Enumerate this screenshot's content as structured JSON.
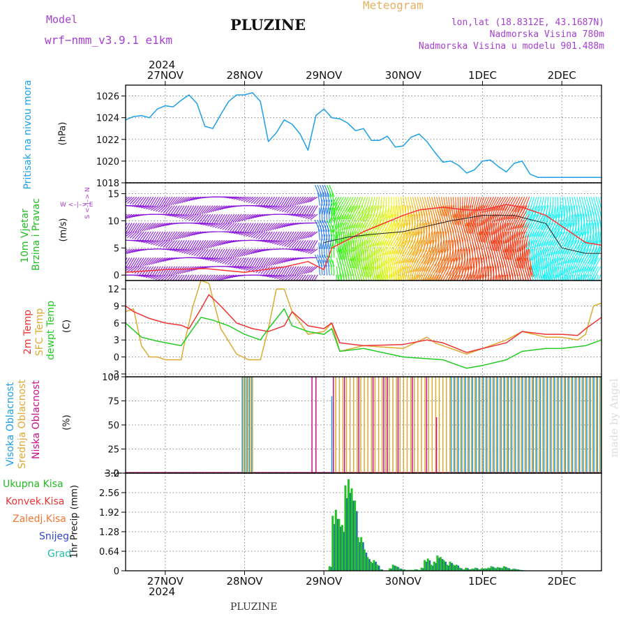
{
  "header": {
    "model_label": "Model",
    "model_name": "wrf−nmm_v3.9.1  e1km",
    "station": "PLUZINE",
    "meteogram_label": "Meteogram",
    "lonlat": "lon,lat (18.8312E, 43.1687N)",
    "altitude": "Nadmorska Visina 780m",
    "model_altitude": "Nadmorska Visina u modelu 901.488m",
    "year_top": "2024",
    "year_bottom": "2024",
    "footer_station": "PLUZINE",
    "credit": "made by Angel"
  },
  "colors": {
    "pressure": "#1ea0e6",
    "t2m": "#ee3333",
    "sfc": "#ddaa33",
    "dewpt": "#22cc22",
    "high": "#1e9de6",
    "mid": "#dcaa33",
    "low": "#cc1188",
    "total": "#22c222",
    "conv": "#ee3333",
    "snow": "#3355cc",
    "accent": "#a540d0"
  },
  "panel_labels": {
    "pressure": {
      "name": "Pritisak na nivou mora",
      "unit": "(hPa)"
    },
    "wind": {
      "name1": "10m Vjetar",
      "name2": "Brzina i Pravac",
      "unit": "(m/s)",
      "compass": "W <–|–> E",
      "compass_v": "S <–|–> N"
    },
    "temp": {
      "l1": "2m Temp",
      "l2": "SFC Temp",
      "l3": "dewpt Temp",
      "unit": "(C)"
    },
    "cloud": {
      "l1": "Visoka Oblacnost",
      "l2": "Srednja Oblacnost",
      "l3": "Niska Oblacnost",
      "unit": "(%)"
    },
    "precip": {
      "l1": "Ukupna Kisa",
      "l2": "Konvek.Kisa",
      "l3": "Zaledj.Kisa",
      "l4": "Snijeg",
      "l5": "Grad",
      "unit": "1hr Precip (mm)"
    }
  },
  "chart_data": [
    {
      "type": "line",
      "id": "pressure",
      "x_ticks": [
        "27NOV",
        "28NOV",
        "29NOV",
        "30NOV",
        "1DEC",
        "2DEC"
      ],
      "x_range_days": [
        -0.5,
        5.5
      ],
      "ylim": [
        1018,
        1027
      ],
      "y_ticks": [
        "1018",
        "1020",
        "1022",
        "1024",
        "1026"
      ],
      "series": [
        {
          "x": [
            -0.5,
            -0.4,
            -0.3,
            -0.2,
            -0.1,
            0,
            0.1,
            0.2,
            0.3,
            0.4,
            0.5,
            0.6,
            0.7,
            0.8,
            0.9,
            1.0,
            1.1,
            1.2,
            1.3,
            1.4,
            1.5,
            1.6,
            1.7,
            1.8,
            1.9,
            2.0,
            2.1,
            2.2,
            2.3,
            2.4,
            2.5,
            2.6,
            2.7,
            2.8,
            2.9,
            3.0,
            3.1,
            3.2,
            3.3,
            3.4,
            3.5,
            3.6,
            3.7,
            3.8,
            3.9,
            4.0,
            4.1,
            4.2,
            4.3,
            4.4,
            4.5,
            4.6,
            4.7,
            4.8,
            4.9,
            5.0,
            5.1,
            5.2,
            5.3,
            5.4,
            5.5
          ],
          "values": [
            1023.8,
            1024.1,
            1024.2,
            1024.0,
            1024.8,
            1025.1,
            1025.0,
            1025.6,
            1026.1,
            1025.3,
            1023.2,
            1023.0,
            1024.3,
            1025.5,
            1026.1,
            1026.1,
            1026.3,
            1025.5,
            1021.8,
            1022.6,
            1023.8,
            1023.4,
            1022.5,
            1021.0,
            1024.2,
            1024.8,
            1024.0,
            1023.9,
            1023.5,
            1022.8,
            1023.0,
            1021.9,
            1021.9,
            1022.3,
            1021.3,
            1021.4,
            1022.2,
            1022.5,
            1021.8,
            1020.8,
            1019.9,
            1020.0,
            1019.6,
            1018.9,
            1019.2,
            1020.0,
            1020.1,
            1019.5,
            1019.0,
            1019.8,
            1020.0,
            1018.8,
            1018.5,
            1018.5,
            1018.5,
            1018.5,
            1018.5,
            1018.5,
            1018.5,
            1018.5,
            1018.5
          ]
        }
      ]
    },
    {
      "type": "line",
      "id": "wind",
      "ylim": [
        -1,
        17
      ],
      "y_ticks": [
        "0",
        "5",
        "10",
        "15"
      ],
      "series": [
        {
          "name": "speed",
          "x": [
            -0.5,
            0,
            0.5,
            1.0,
            1.5,
            1.8,
            2.0,
            2.1,
            2.5,
            3.0,
            3.2,
            3.5,
            3.8,
            4.0,
            4.3,
            4.5,
            4.8,
            5.0,
            5.3,
            5.5
          ],
          "values": [
            0.5,
            1.0,
            1.2,
            0.5,
            1.5,
            2.5,
            1.0,
            5.0,
            8.0,
            11.0,
            12.0,
            12.5,
            12.0,
            12.0,
            13.0,
            12.5,
            11.0,
            9.0,
            6.0,
            5.5
          ]
        },
        {
          "name": "speed_model",
          "x": [
            2.0,
            2.3,
            2.6,
            3.0,
            3.3,
            3.6,
            4.0,
            4.4,
            4.8,
            5.0,
            5.3,
            5.5
          ],
          "values": [
            6.0,
            7.0,
            7.5,
            8.0,
            9.0,
            10.0,
            11.0,
            11.0,
            9.5,
            5.0,
            4.0,
            4.0
          ]
        }
      ]
    },
    {
      "type": "line",
      "id": "temperature",
      "ylim": [
        -3.5,
        13.5
      ],
      "y_ticks": [
        "-3",
        "0",
        "3",
        "6",
        "9",
        "12"
      ],
      "series": [
        {
          "name": "2m Temp",
          "x": [
            -0.5,
            -0.4,
            -0.2,
            0.0,
            0.2,
            0.3,
            0.45,
            0.55,
            0.7,
            0.9,
            1.1,
            1.3,
            1.5,
            1.6,
            1.8,
            2.0,
            2.1,
            2.2,
            2.5,
            3.0,
            3.3,
            3.5,
            3.8,
            4.0,
            4.3,
            4.5,
            4.8,
            5.0,
            5.2,
            5.3,
            5.5
          ],
          "values": [
            9.0,
            8.0,
            6.8,
            6.0,
            5.6,
            5.0,
            8.5,
            11.0,
            9.0,
            6.0,
            5.0,
            4.5,
            5.5,
            8.0,
            5.5,
            5.0,
            6.0,
            2.5,
            2.0,
            2.2,
            3.0,
            2.5,
            0.8,
            1.5,
            2.5,
            4.5,
            4.0,
            4.0,
            3.8,
            5.0,
            7.0
          ]
        },
        {
          "name": "SFC Temp",
          "x": [
            -0.5,
            -0.4,
            -0.3,
            -0.2,
            -0.1,
            0.0,
            0.2,
            0.25,
            0.35,
            0.45,
            0.55,
            0.7,
            0.9,
            1.05,
            1.2,
            1.3,
            1.4,
            1.5,
            1.6,
            1.8,
            2.0,
            2.1,
            2.2,
            2.5,
            3.0,
            3.3,
            3.4,
            3.5,
            3.8,
            4.0,
            4.3,
            4.5,
            4.8,
            5.0,
            5.2,
            5.3,
            5.4,
            5.5
          ],
          "values": [
            8.0,
            8.5,
            2.0,
            0.0,
            0.0,
            -0.5,
            -0.5,
            3.0,
            9.0,
            13.5,
            13.0,
            5.0,
            0.5,
            -0.5,
            -0.5,
            5.0,
            12.0,
            12.0,
            8.0,
            4.0,
            4.5,
            6.0,
            1.0,
            2.0,
            1.5,
            3.5,
            2.5,
            2.0,
            0.5,
            1.5,
            3.0,
            4.5,
            3.5,
            3.5,
            3.0,
            4.0,
            9.0,
            9.5
          ]
        },
        {
          "name": "dewpt Temp",
          "x": [
            -0.5,
            -0.3,
            -0.1,
            0.2,
            0.3,
            0.45,
            0.6,
            0.8,
            1.0,
            1.2,
            1.3,
            1.5,
            1.6,
            1.8,
            2.0,
            2.1,
            2.2,
            2.5,
            3.0,
            3.5,
            3.8,
            4.0,
            4.3,
            4.5,
            4.8,
            5.0,
            5.3,
            5.5
          ],
          "values": [
            6.0,
            3.5,
            2.8,
            2.0,
            4.0,
            7.0,
            6.5,
            5.5,
            4.0,
            3.0,
            5.0,
            8.5,
            5.5,
            4.5,
            4.0,
            5.0,
            1.0,
            1.5,
            0.0,
            -0.5,
            -2.0,
            -1.5,
            -0.5,
            1.0,
            1.5,
            1.5,
            2.0,
            3.0
          ]
        }
      ]
    },
    {
      "type": "bar",
      "id": "cloud",
      "ylim": [
        0,
        100
      ],
      "y_ticks": [
        "0",
        "25",
        "50",
        "75",
        "100"
      ]
    },
    {
      "type": "bar",
      "id": "precip",
      "ylim": [
        0,
        3.2
      ],
      "y_ticks": [
        "0",
        "0.64",
        "1.28",
        "1.92",
        "2.56",
        "3.2"
      ],
      "series": [
        {
          "name": "Ukupna Kisa",
          "x": [
            2.08,
            2.12,
            2.16,
            2.2,
            2.24,
            2.28,
            2.32,
            2.36,
            2.4,
            2.44,
            2.48,
            2.52,
            2.56,
            2.6,
            2.64,
            2.68,
            2.72,
            2.76,
            2.8,
            2.84,
            2.88,
            2.92,
            2.96,
            3.0,
            3.04,
            3.08,
            3.12,
            3.16,
            3.2,
            3.24,
            3.28,
            3.32,
            3.36,
            3.4,
            3.44,
            3.48,
            3.52,
            3.56,
            3.6,
            3.64,
            3.68,
            3.72,
            3.76,
            3.8,
            3.84,
            3.88,
            3.92,
            3.96,
            4.0,
            4.04,
            4.08,
            4.12,
            4.16,
            4.2,
            4.24,
            4.28,
            4.32,
            4.36,
            4.4,
            4.44,
            4.48,
            4.52
          ],
          "values": [
            0.15,
            1.8,
            2.0,
            1.7,
            1.5,
            2.8,
            3.0,
            2.7,
            2.3,
            1.1,
            1.1,
            0.7,
            0.45,
            0.3,
            0.35,
            0.2,
            0.05,
            0.0,
            0.0,
            0.08,
            0.2,
            0.15,
            0.08,
            0.05,
            0.03,
            0.03,
            0.03,
            0.05,
            0.03,
            0.1,
            0.35,
            0.4,
            0.2,
            0.3,
            0.5,
            0.45,
            0.35,
            0.2,
            0.3,
            0.2,
            0.2,
            0.1,
            0.05,
            0.1,
            0.05,
            0.07,
            0.1,
            0.05,
            0.08,
            0.08,
            0.1,
            0.15,
            0.1,
            0.12,
            0.1,
            0.15,
            0.1,
            0.05,
            0.07,
            0.05,
            0.03,
            0.02
          ]
        }
      ]
    }
  ]
}
